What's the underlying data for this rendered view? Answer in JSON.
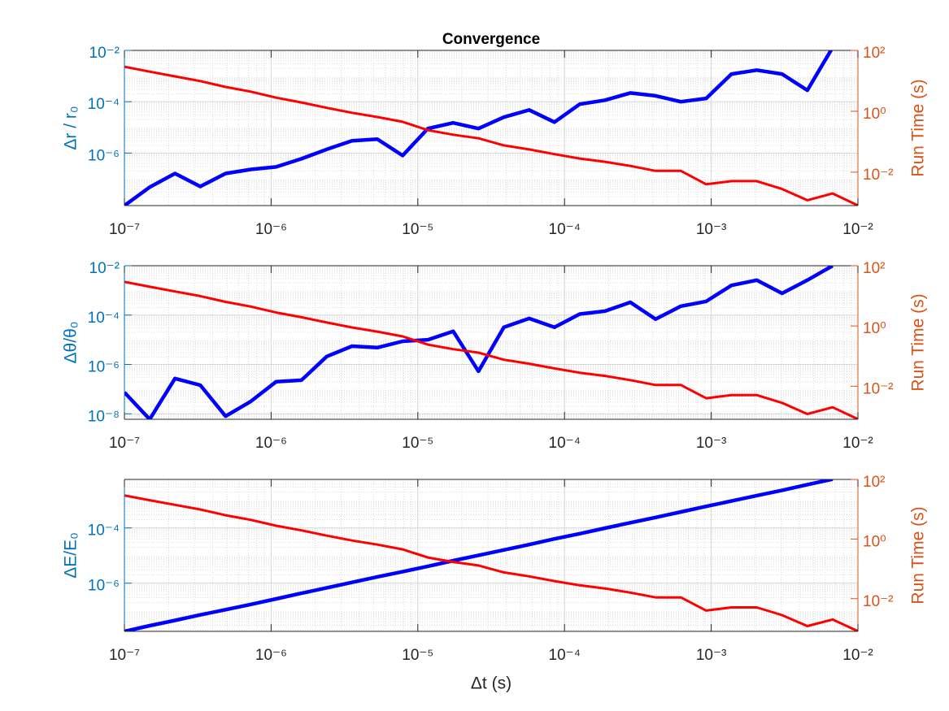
{
  "chart_data": [
    {
      "type": "line",
      "title": "Convergence",
      "ylabel": "Δr / r₀",
      "y2label": "Run Time (s)",
      "xscale": "log",
      "yscale": "log",
      "grid": true,
      "minor_grid": true,
      "x": [
        1e-07,
        1.487e-07,
        2.212e-07,
        3.29e-07,
        4.894e-07,
        7.279e-07,
        1.083e-06,
        1.61e-06,
        2.395e-06,
        3.562e-06,
        5.298e-06,
        7.88e-06,
        1.172e-05,
        1.743e-05,
        2.593e-05,
        3.857e-05,
        5.736e-05,
        8.532e-05,
        0.0001269,
        0.0001887,
        0.0002807,
        0.0004175,
        0.000621,
        0.0009237,
        0.001374,
        0.002043,
        0.003039,
        0.00452,
        0.006723,
        0.01
      ],
      "xlim": [
        1e-07,
        0.01
      ],
      "xticks": [
        {
          "value": 1e-07,
          "label": "10⁻⁷"
        },
        {
          "value": 1e-06,
          "label": "10⁻⁶"
        },
        {
          "value": 1e-05,
          "label": "10⁻⁵"
        },
        {
          "value": 0.0001,
          "label": "10⁻⁴"
        },
        {
          "value": 0.001,
          "label": "10⁻³"
        },
        {
          "value": 0.01,
          "label": "10⁻²"
        }
      ],
      "ylim": [
        9e-09,
        0.01
      ],
      "yticks": [
        {
          "value": 1e-06,
          "label": "10⁻⁶"
        },
        {
          "value": 0.0001,
          "label": "10⁻⁴"
        },
        {
          "value": 0.01,
          "label": "10⁻²"
        }
      ],
      "y2lim": [
        0.0008,
        100
      ],
      "y2ticks": [
        {
          "value": 0.01,
          "label": "10⁻²"
        },
        {
          "value": 1,
          "label": "10⁰"
        },
        {
          "value": 100,
          "label": "10²"
        }
      ],
      "series": [
        {
          "color": "#0000ff",
          "values": [
            9e-09,
            4.7e-08,
            1.6e-07,
            5e-08,
            1.6e-07,
            2.3e-07,
            2.9e-07,
            6e-07,
            1.4e-06,
            3e-06,
            3.5e-06,
            8e-07,
            9e-06,
            1.5e-05,
            9e-06,
            2.5e-05,
            4.8e-05,
            1.6e-05,
            8e-05,
            0.000115,
            0.00022,
            0.00017,
            0.0001,
            0.000135,
            0.0012,
            0.0017,
            0.0012,
            0.00028,
            0.013,
            null
          ]
        },
        {
          "color": "#ff0000",
          "axis": "y2",
          "values": [
            29,
            20,
            14,
            9.8,
            6.3,
            4.4,
            2.8,
            1.95,
            1.3,
            0.89,
            0.65,
            0.45,
            0.24,
            0.17,
            0.13,
            0.076,
            0.056,
            0.039,
            0.028,
            0.022,
            0.016,
            0.011,
            0.011,
            0.004,
            0.0051,
            0.0051,
            0.0028,
            0.0012,
            0.002,
            0.00081
          ]
        }
      ]
    },
    {
      "type": "line",
      "ylabel": "Δθ/θ₀",
      "y2label": "Run Time (s)",
      "xscale": "log",
      "yscale": "log",
      "grid": true,
      "minor_grid": true,
      "x": [
        1e-07,
        1.487e-07,
        2.212e-07,
        3.29e-07,
        4.894e-07,
        7.279e-07,
        1.083e-06,
        1.61e-06,
        2.395e-06,
        3.562e-06,
        5.298e-06,
        7.88e-06,
        1.172e-05,
        1.743e-05,
        2.593e-05,
        3.857e-05,
        5.736e-05,
        8.532e-05,
        0.0001269,
        0.0001887,
        0.0002807,
        0.0004175,
        0.000621,
        0.0009237,
        0.001374,
        0.002043,
        0.003039,
        0.00452,
        0.006723,
        0.01
      ],
      "xlim": [
        1e-07,
        0.01
      ],
      "xticks": [
        {
          "value": 1e-07,
          "label": "10⁻⁷"
        },
        {
          "value": 1e-06,
          "label": "10⁻⁶"
        },
        {
          "value": 1e-05,
          "label": "10⁻⁵"
        },
        {
          "value": 0.0001,
          "label": "10⁻⁴"
        },
        {
          "value": 0.001,
          "label": "10⁻³"
        },
        {
          "value": 0.01,
          "label": "10⁻²"
        }
      ],
      "ylim": [
        6e-09,
        0.01
      ],
      "yticks": [
        {
          "value": 1e-08,
          "label": "10⁻⁸"
        },
        {
          "value": 1e-06,
          "label": "10⁻⁶"
        },
        {
          "value": 0.0001,
          "label": "10⁻⁴"
        },
        {
          "value": 0.01,
          "label": "10⁻²"
        }
      ],
      "y2lim": [
        0.0008,
        100
      ],
      "y2ticks": [
        {
          "value": 0.01,
          "label": "10⁻²"
        },
        {
          "value": 1,
          "label": "10⁰"
        },
        {
          "value": 100,
          "label": "10²"
        }
      ],
      "series": [
        {
          "color": "#0000ff",
          "values": [
            7.4e-08,
            6e-09,
            2.7e-07,
            1.45e-07,
            8e-09,
            3.2e-08,
            2e-07,
            2.3e-07,
            2.1e-06,
            5.5e-06,
            4.8e-06,
            8.7e-06,
            1e-05,
            2.2e-05,
            5.3e-07,
            3.2e-05,
            7.3e-05,
            3.2e-05,
            0.00011,
            0.000145,
            0.00033,
            6.8e-05,
            0.00023,
            0.00036,
            0.0016,
            0.0026,
            0.00076,
            0.0026,
            0.01,
            null
          ]
        },
        {
          "color": "#ff0000",
          "axis": "y2",
          "values": [
            29,
            20,
            14,
            9.8,
            6.3,
            4.4,
            2.8,
            1.95,
            1.3,
            0.89,
            0.65,
            0.45,
            0.24,
            0.17,
            0.13,
            0.076,
            0.056,
            0.039,
            0.028,
            0.022,
            0.016,
            0.011,
            0.011,
            0.004,
            0.0051,
            0.0051,
            0.0028,
            0.0012,
            0.002,
            0.00081
          ]
        }
      ]
    },
    {
      "type": "line",
      "ylabel": "ΔE/E₀",
      "y2label": "Run Time (s)",
      "xlabel": "Δt (s)",
      "xscale": "log",
      "yscale": "log",
      "grid": true,
      "minor_grid": true,
      "x": [
        1e-07,
        1.487e-07,
        2.212e-07,
        3.29e-07,
        4.894e-07,
        7.279e-07,
        1.083e-06,
        1.61e-06,
        2.395e-06,
        3.562e-06,
        5.298e-06,
        7.88e-06,
        1.172e-05,
        1.743e-05,
        2.593e-05,
        3.857e-05,
        5.736e-05,
        8.532e-05,
        0.0001269,
        0.0001887,
        0.0002807,
        0.0004175,
        0.000621,
        0.0009237,
        0.001374,
        0.002043,
        0.003039,
        0.00452,
        0.006723,
        0.01
      ],
      "xlim": [
        1e-07,
        0.01
      ],
      "xticks": [
        {
          "value": 1e-07,
          "label": "10⁻⁷"
        },
        {
          "value": 1e-06,
          "label": "10⁻⁶"
        },
        {
          "value": 1e-05,
          "label": "10⁻⁵"
        },
        {
          "value": 0.0001,
          "label": "10⁻⁴"
        },
        {
          "value": 0.001,
          "label": "10⁻³"
        },
        {
          "value": 0.01,
          "label": "10⁻²"
        }
      ],
      "ylim": [
        1.8e-08,
        0.0057
      ],
      "yticks": [
        {
          "value": 1e-06,
          "label": "10⁻⁶"
        },
        {
          "value": 0.0001,
          "label": "10⁻⁴"
        }
      ],
      "y2lim": [
        0.0008,
        100
      ],
      "y2ticks": [
        {
          "value": 0.01,
          "label": "10⁻²"
        },
        {
          "value": 1,
          "label": "10⁰"
        },
        {
          "value": 100,
          "label": "10²"
        }
      ],
      "series": [
        {
          "color": "#0000ff",
          "values": [
            1.8e-08,
            2.9e-08,
            4.5e-08,
            7.1e-08,
            1.1e-07,
            1.7e-07,
            2.7e-07,
            4.3e-07,
            6.8e-07,
            1.07e-06,
            1.7e-06,
            2.6e-06,
            4.1e-06,
            6.5e-06,
            1.02e-05,
            1.6e-05,
            2.5e-05,
            4e-05,
            6.2e-05,
            9.8e-05,
            0.000154,
            0.00024,
            0.00038,
            0.0006,
            0.00094,
            0.00148,
            0.0023,
            0.0037,
            0.0058,
            null
          ]
        },
        {
          "color": "#ff0000",
          "axis": "y2",
          "values": [
            29,
            20,
            14,
            9.8,
            6.3,
            4.4,
            2.8,
            1.95,
            1.3,
            0.89,
            0.65,
            0.45,
            0.24,
            0.17,
            0.13,
            0.076,
            0.056,
            0.039,
            0.028,
            0.022,
            0.016,
            0.011,
            0.011,
            0.004,
            0.0051,
            0.0051,
            0.0028,
            0.0012,
            0.002,
            0.00081
          ]
        }
      ]
    }
  ]
}
